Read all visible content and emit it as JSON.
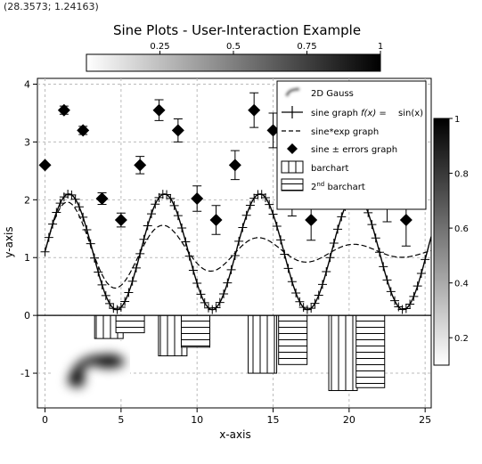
{
  "coordinate_readout": "(28.3573; 1.24163)",
  "chart_data": {
    "type": "line",
    "title": "Sine Plots - User-Interaction Example",
    "xlabel": "x-axis",
    "ylabel": "y-axis",
    "xlim": [
      -0.5,
      25.4
    ],
    "ylim": [
      -1.6,
      4.1
    ],
    "x_ticks": [
      0,
      5,
      10,
      15,
      20,
      25
    ],
    "y_ticks": [
      -1,
      0,
      1,
      2,
      3,
      4
    ],
    "grid": true,
    "legend_position": "top-right",
    "top_colorbar": {
      "ticks": [
        "0.25",
        "0.5",
        "0.75",
        "1"
      ],
      "range": [
        0,
        1
      ]
    },
    "right_colorbar": {
      "ticks": [
        "0.2",
        "0.4",
        "0.6",
        "0.8",
        "1"
      ],
      "range": [
        0.1,
        1
      ]
    },
    "series": [
      {
        "name": "2D Gauss",
        "type": "image"
      },
      {
        "name": "sine graph",
        "type": "line",
        "formula": "1.1 + sin(x)",
        "marker": "plus"
      },
      {
        "name": "sine*exp graph",
        "type": "line",
        "formula": "1.1 + sin(x)*exp(-0.1x)",
        "style": "dashed"
      },
      {
        "name": "sine ± errors graph",
        "type": "scatter",
        "x": [
          0,
          1.25,
          2.5,
          3.75,
          5,
          6.25,
          7.5,
          8.75,
          10,
          11.25,
          12.5,
          13.75,
          15,
          16.25,
          17.5,
          18.75,
          20,
          21.25,
          22.5,
          23.75
        ],
        "y": [
          2.6,
          3.55,
          3.2,
          2.02,
          1.65,
          2.6,
          3.55,
          3.2,
          2.02,
          1.65,
          2.6,
          3.55,
          3.2,
          2.02,
          1.65,
          2.6,
          3.55,
          3.2,
          2.02,
          1.65
        ],
        "err": [
          0,
          0.07,
          0.07,
          0.1,
          0.12,
          0.15,
          0.18,
          0.2,
          0.22,
          0.25,
          0.25,
          0.3,
          0.3,
          0.3,
          0.35,
          0.35,
          0.35,
          0.4,
          0.4,
          0.45
        ]
      },
      {
        "name": "barchart",
        "type": "bar",
        "hatch": "vertical",
        "x": [
          4.2,
          8.4,
          14.3,
          19.6
        ],
        "values": [
          -0.4,
          -0.7,
          -1.0,
          -1.3
        ]
      },
      {
        "name": "2nd barchart",
        "type": "bar",
        "hatch": "horizontal",
        "x": [
          5.6,
          9.9,
          16.3,
          21.4
        ],
        "values": [
          -0.3,
          -0.55,
          -0.85,
          -1.25
        ]
      }
    ],
    "legend_labels": {
      "gauss": "2D Gauss",
      "sine": "sine graph",
      "sine_formula_lhs": "f(x) =",
      "sine_formula_rhs": "sin(x)",
      "sineexp": "sine*exp graph",
      "errors": "sine ± errors graph",
      "bar1": "barchart",
      "bar2_main": "2",
      "bar2_sup": "nd",
      "bar2_rest": " barchart"
    }
  }
}
